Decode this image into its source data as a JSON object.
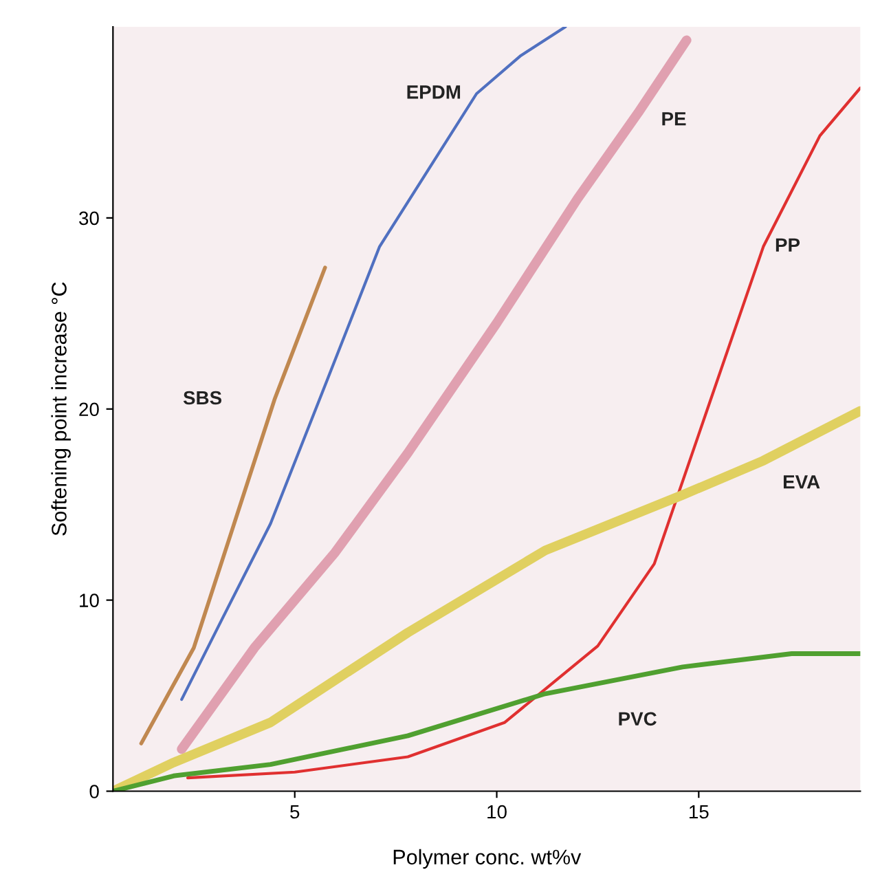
{
  "chart_data": {
    "type": "line",
    "xlabel": "Polymer conc. wt%v",
    "ylabel": "Softening point increase °C",
    "xlim": [
      0.5,
      19
    ],
    "ylim": [
      0,
      40
    ],
    "xticks": [
      5,
      10,
      15
    ],
    "yticks": [
      0,
      10,
      20,
      30
    ],
    "grid": false,
    "legend": false,
    "marker": "none",
    "line_style": "solid",
    "series": [
      {
        "name": "SBS",
        "color": "#c08850",
        "x": [
          1.2,
          2.5,
          3.5,
          4.5,
          5.75
        ],
        "values": [
          2.5,
          7.5,
          14,
          20.5,
          27.4
        ]
      },
      {
        "name": "EPDM",
        "color": "#5070c0",
        "x": [
          2.2,
          3.2,
          4.4,
          5.8,
          7.1,
          8.3,
          9.5,
          10.6,
          11.7
        ],
        "values": [
          4.8,
          9,
          14,
          21.5,
          28.5,
          32.5,
          36.5,
          38.5,
          40
        ]
      },
      {
        "name": "PE",
        "color": "#e0a0b0",
        "x": [
          2.2,
          4,
          6,
          7.8,
          10,
          12,
          13.5,
          14.7
        ],
        "values": [
          2.2,
          7.5,
          12.5,
          17.7,
          24.5,
          31,
          35.5,
          39.3
        ]
      },
      {
        "name": "PP",
        "color": "#e03030",
        "x": [
          2.35,
          5,
          7.8,
          10.2,
          12.5,
          13.9,
          15.2,
          16.6,
          18,
          19
        ],
        "values": [
          0.7,
          1,
          1.8,
          3.6,
          7.6,
          11.9,
          19.9,
          28.5,
          34.3,
          36.8
        ]
      },
      {
        "name": "EVA",
        "color": "#e0d060",
        "x": [
          0.5,
          2,
          4.4,
          7.8,
          11.2,
          14.6,
          16.6,
          19
        ],
        "values": [
          0,
          1.5,
          3.6,
          8.3,
          12.6,
          15.5,
          17.3,
          19.9
        ]
      },
      {
        "name": "PVC",
        "color": "#50a030",
        "x": [
          0.5,
          2,
          4.4,
          7.8,
          11.2,
          14.6,
          17.3,
          19
        ],
        "values": [
          0,
          0.8,
          1.4,
          2.9,
          5.1,
          6.5,
          7.2,
          7.2
        ]
      }
    ]
  }
}
